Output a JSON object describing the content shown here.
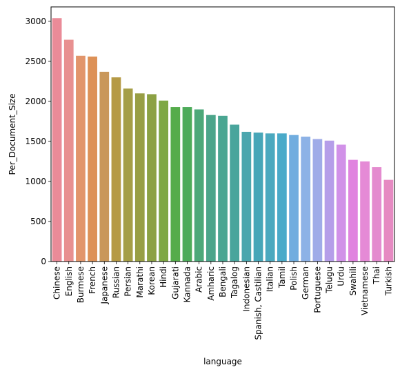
{
  "chart_data": {
    "type": "bar",
    "xlabel": "language",
    "ylabel": "Per_Document_Size",
    "ylim": [
      0,
      3180
    ],
    "yticks": [
      0,
      500,
      1000,
      1500,
      2000,
      2500,
      3000
    ],
    "grid": false,
    "categories": [
      "Chinese",
      "English",
      "Burmese",
      "French",
      "Japanese",
      "Russian",
      "Persian",
      "Marathi",
      "Korean",
      "Hindi",
      "Gujarati",
      "Kannada",
      "Arabic",
      "Amharic",
      "Bengali",
      "Tagalog",
      "Indonesian",
      "Spanish, Castilian",
      "Italian",
      "Tamil",
      "Polish",
      "German",
      "Portuguese",
      "Telugu",
      "Urdu",
      "Swahili",
      "Vietnamese",
      "Thai",
      "Turkish"
    ],
    "values": [
      3040,
      2770,
      2570,
      2560,
      2370,
      2300,
      2160,
      2100,
      2090,
      2010,
      1930,
      1930,
      1900,
      1830,
      1820,
      1710,
      1620,
      1610,
      1600,
      1600,
      1580,
      1560,
      1530,
      1510,
      1460,
      1270,
      1250,
      1180,
      1020
    ],
    "colors": [
      "#ea8b98",
      "#e89090",
      "#e2956b",
      "#dd9157",
      "#c9975a",
      "#b59a45",
      "#a59e47",
      "#989e45",
      "#8ca144",
      "#7ea744",
      "#55ac4b",
      "#4dab5a",
      "#4ca879",
      "#4ba58a",
      "#4aa692",
      "#49a59c",
      "#4ba6ae",
      "#47a6b8",
      "#4ba9bf",
      "#4aaac9",
      "#71addf",
      "#8db2e6",
      "#9fabe8",
      "#b59ee9",
      "#d191e8",
      "#e084df",
      "#e58ad6",
      "#e48bcf",
      "#e68ac2"
    ]
  }
}
